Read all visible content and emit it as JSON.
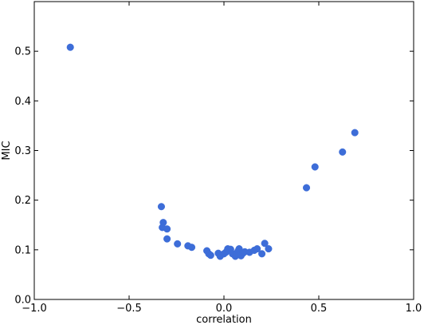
{
  "chart_data": {
    "type": "scatter",
    "title": "",
    "xlabel": "correlation",
    "ylabel": "MIC",
    "xlim": [
      -1.0,
      1.0
    ],
    "ylim": [
      0.0,
      0.6
    ],
    "xticks": [
      -1.0,
      -0.5,
      0.0,
      0.5,
      1.0
    ],
    "xtick_labels": [
      "−1.0",
      "−0.5",
      "0.0",
      "0.5",
      "1.0"
    ],
    "yticks": [
      0.0,
      0.1,
      0.2,
      0.3,
      0.4,
      0.5
    ],
    "ytick_labels": [
      "0.0",
      "0.1",
      "0.2",
      "0.3",
      "0.4",
      "0.5"
    ],
    "grid": false,
    "marker_color": "#3d6dd8",
    "series": [
      {
        "points": [
          [
            -0.81,
            0.508
          ],
          [
            -0.33,
            0.187
          ],
          [
            -0.32,
            0.155
          ],
          [
            -0.325,
            0.145
          ],
          [
            -0.3,
            0.142
          ],
          [
            -0.3,
            0.122
          ],
          [
            -0.245,
            0.112
          ],
          [
            -0.19,
            0.108
          ],
          [
            -0.17,
            0.105
          ],
          [
            -0.09,
            0.098
          ],
          [
            -0.08,
            0.092
          ],
          [
            -0.07,
            0.089
          ],
          [
            -0.03,
            0.093
          ],
          [
            -0.02,
            0.087
          ],
          [
            0.0,
            0.092
          ],
          [
            0.01,
            0.095
          ],
          [
            0.02,
            0.102
          ],
          [
            0.035,
            0.101
          ],
          [
            0.045,
            0.092
          ],
          [
            0.06,
            0.087
          ],
          [
            0.065,
            0.093
          ],
          [
            0.075,
            0.098
          ],
          [
            0.08,
            0.102
          ],
          [
            0.085,
            0.09
          ],
          [
            0.09,
            0.088
          ],
          [
            0.1,
            0.093
          ],
          [
            0.11,
            0.096
          ],
          [
            0.135,
            0.095
          ],
          [
            0.16,
            0.099
          ],
          [
            0.175,
            0.102
          ],
          [
            0.2,
            0.092
          ],
          [
            0.215,
            0.113
          ],
          [
            0.235,
            0.102
          ],
          [
            0.435,
            0.225
          ],
          [
            0.48,
            0.267
          ],
          [
            0.625,
            0.297
          ],
          [
            0.69,
            0.336
          ]
        ]
      }
    ]
  }
}
